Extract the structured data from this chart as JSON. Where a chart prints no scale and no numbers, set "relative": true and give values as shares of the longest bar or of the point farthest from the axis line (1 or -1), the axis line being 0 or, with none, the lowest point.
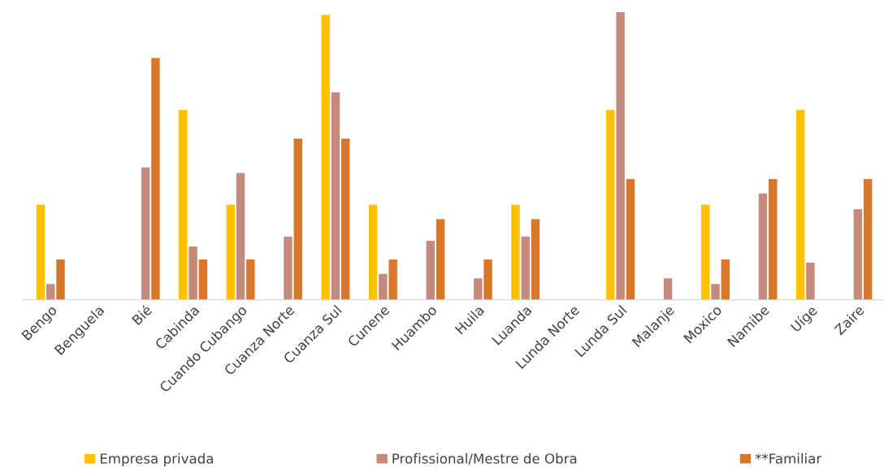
{
  "chart_data": {
    "type": "bar",
    "relative": true,
    "categories": [
      "Bengo",
      "Benguela",
      "Bié",
      "Cabinda",
      "Cuando Cubango",
      "Cuanza Norte",
      "Cuanza Sul",
      "Cunene",
      "Huambo",
      "Huila",
      "Luanda",
      "Lunda Norte",
      "Lunda Sul",
      "Malanje",
      "Moxico",
      "Namibe",
      "Uíge",
      "Zaire"
    ],
    "series": [
      {
        "name": "Empresa privada",
        "color": "#ffc000",
        "values": [
          0.33,
          null,
          null,
          0.66,
          0.33,
          null,
          0.99,
          0.33,
          null,
          null,
          0.33,
          null,
          0.66,
          null,
          0.33,
          null,
          0.66,
          null
        ]
      },
      {
        "name": "Profissional/Mestre de Obra",
        "color": "#c48a7c",
        "values": [
          0.055,
          null,
          0.46,
          0.185,
          0.44,
          0.22,
          0.72,
          0.09,
          0.205,
          0.075,
          0.22,
          null,
          1,
          0.075,
          0.055,
          0.37,
          0.13,
          0.315
        ]
      },
      {
        "name": "**Familiar",
        "color": "#d8772a",
        "values": [
          0.14,
          null,
          0.84,
          0.14,
          0.14,
          0.56,
          0.56,
          0.14,
          0.28,
          0.14,
          0.28,
          null,
          0.42,
          null,
          0.14,
          0.42,
          null,
          0.42
        ]
      }
    ],
    "legend": "bottom",
    "grid": false
  }
}
